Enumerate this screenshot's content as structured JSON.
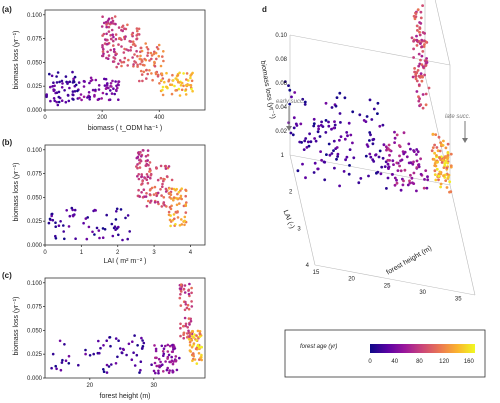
{
  "chart_data": [
    {
      "type": "scatter",
      "panel": "(a)",
      "xlabel": "biomass ( t_ODM ha⁻¹ )",
      "ylabel": "biomass loss (yr⁻¹)",
      "xlim": [
        0,
        560
      ],
      "ylim": [
        0,
        0.105
      ],
      "xticks": [
        "0",
        "200",
        "400"
      ],
      "yticks": [
        "0.000",
        "0.025",
        "0.050",
        "0.075",
        "0.100"
      ],
      "clusters": [
        {
          "x": [
            5,
            120
          ],
          "y": [
            0.005,
            0.04
          ],
          "age": [
            0,
            40
          ]
        },
        {
          "x": [
            120,
            260
          ],
          "y": [
            0.01,
            0.035
          ],
          "age": [
            20,
            60
          ]
        },
        {
          "x": [
            200,
            250
          ],
          "y": [
            0.05,
            0.1
          ],
          "age": [
            60,
            100
          ]
        },
        {
          "x": [
            250,
            330
          ],
          "y": [
            0.045,
            0.09
          ],
          "age": [
            70,
            110
          ]
        },
        {
          "x": [
            330,
            420
          ],
          "y": [
            0.03,
            0.07
          ],
          "age": [
            90,
            130
          ]
        },
        {
          "x": [
            400,
            520
          ],
          "y": [
            0.015,
            0.04
          ],
          "age": [
            110,
            170
          ]
        }
      ]
    },
    {
      "type": "scatter",
      "panel": "(b)",
      "xlabel": "LAI ( m² m⁻² )",
      "ylabel": "biomass loss (yr⁻¹)",
      "xlim": [
        0,
        4.4
      ],
      "ylim": [
        0,
        0.105
      ],
      "xticks": [
        "0",
        "1",
        "2",
        "3",
        "4"
      ],
      "yticks": [
        "0.000",
        "0.025",
        "0.050",
        "0.075",
        "0.100"
      ],
      "clusters": [
        {
          "x": [
            0.1,
            2.4
          ],
          "y": [
            0.005,
            0.04
          ],
          "age": [
            0,
            40
          ]
        },
        {
          "x": [
            2.5,
            2.9
          ],
          "y": [
            0.05,
            0.1
          ],
          "age": [
            60,
            100
          ]
        },
        {
          "x": [
            2.8,
            3.5
          ],
          "y": [
            0.04,
            0.085
          ],
          "age": [
            70,
            120
          ]
        },
        {
          "x": [
            3.4,
            3.9
          ],
          "y": [
            0.02,
            0.06
          ],
          "age": [
            100,
            160
          ]
        }
      ]
    },
    {
      "type": "scatter",
      "panel": "(c)",
      "xlabel": "forest height (m)",
      "ylabel": "biomass loss (yr⁻¹)",
      "xlim": [
        13,
        38
      ],
      "ylim": [
        0,
        0.105
      ],
      "xticks": [
        "20",
        "30"
      ],
      "yticks": [
        "0.000",
        "0.025",
        "0.050",
        "0.075",
        "0.100"
      ],
      "clusters": [
        {
          "x": [
            14,
            30
          ],
          "y": [
            0.005,
            0.045
          ],
          "age": [
            0,
            40
          ]
        },
        {
          "x": [
            30,
            34
          ],
          "y": [
            0.005,
            0.035
          ],
          "age": [
            30,
            70
          ]
        },
        {
          "x": [
            34,
            36
          ],
          "y": [
            0.04,
            0.1
          ],
          "age": [
            60,
            110
          ]
        },
        {
          "x": [
            35.5,
            37.5
          ],
          "y": [
            0.015,
            0.05
          ],
          "age": [
            100,
            170
          ]
        }
      ]
    },
    {
      "type": "scatter3d",
      "panel": "d",
      "xlabel": "forest height (m)",
      "ylabel": "LAI (-)",
      "zlabel": "biomass loss (yr⁻¹)",
      "xticks": [
        "15",
        "20",
        "25",
        "30",
        "35"
      ],
      "yticks": [
        "1",
        "2",
        "3",
        "4"
      ],
      "zticks": [
        "0.02",
        "0.04",
        "0.06",
        "0.08",
        "0.10"
      ],
      "annotations": [
        "early succ.",
        "late succ."
      ]
    }
  ],
  "legend": {
    "title": "forest age (yr)",
    "ticks": [
      "0",
      "40",
      "80",
      "120",
      "160"
    ],
    "colors": [
      "#0d0887",
      "#5b02a3",
      "#9a179b",
      "#cb4678",
      "#eb7852",
      "#fbb32f",
      "#f0f921"
    ]
  }
}
